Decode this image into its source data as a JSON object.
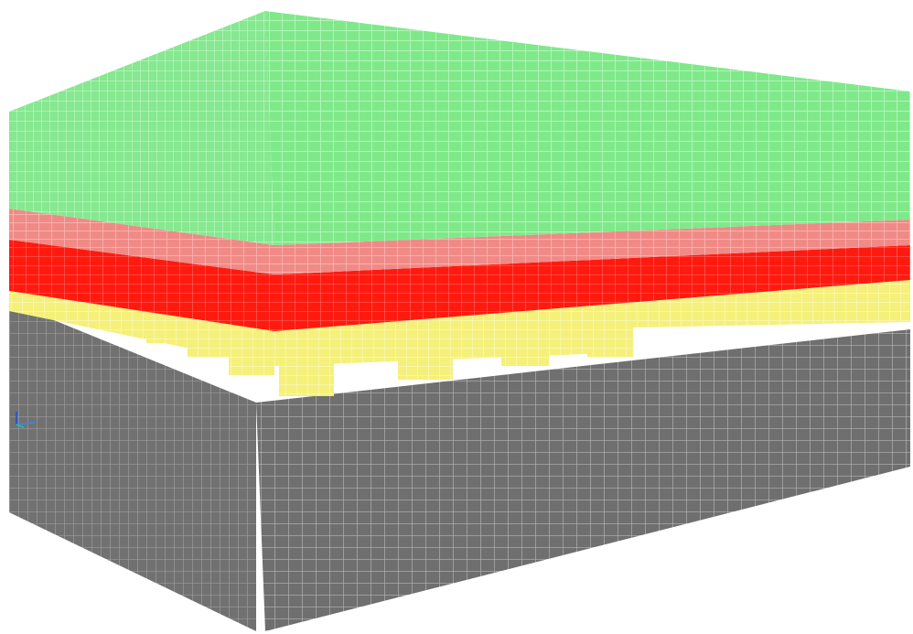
{
  "view": {
    "background": "#ffffff",
    "projection": "perspective"
  },
  "layers": [
    {
      "id": "top-slab",
      "color": "#7fe98a",
      "grid_color": "#b9f6c0",
      "opacity": 0.92
    },
    {
      "id": "upper-red-band",
      "color": "#f08a86",
      "grid_color": "#f9c4c1",
      "opacity": 0.95
    },
    {
      "id": "red-band",
      "color": "#ff1a10",
      "grid_color": "#ff6a62",
      "opacity": 0.98
    },
    {
      "id": "yellow-band",
      "color": "#f5f07a",
      "grid_color": "#fbf9bf",
      "opacity": 0.95
    },
    {
      "id": "base-block",
      "color": "#6f6f6f",
      "grid_color": "#b8b8b8",
      "opacity": 0.9
    }
  ],
  "piers": {
    "count": 10,
    "color": "#f2ee7c",
    "grid_color": "#fbf9c8"
  },
  "axis_triad": {
    "x_color": "#2a8cff",
    "y_color": "#20c0a0",
    "z_color": "#2050d0"
  }
}
